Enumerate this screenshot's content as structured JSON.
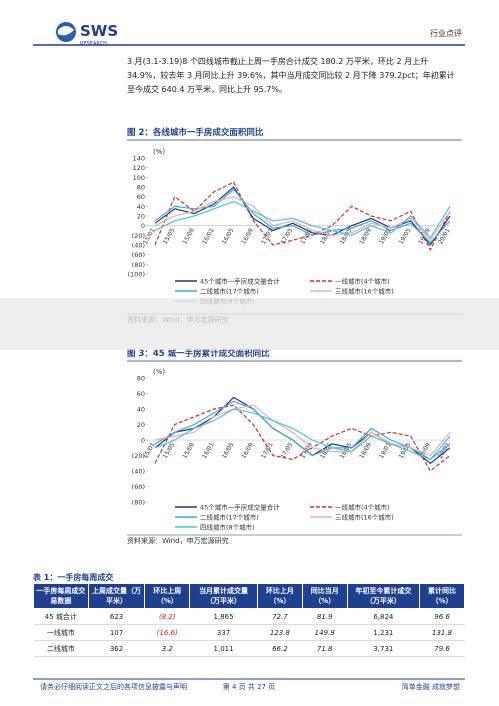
{
  "header": {
    "logo": "SWS",
    "logo_sub": "RESEARCH",
    "section": "行业点评"
  },
  "paragraph": {
    "lines": [
      "3 月(3.1-3.19)8 个四线城市截止上周一手房合计成交 180.2 万平米，环比 2 月上升",
      "34.9%，较去年 3 月同比上升 39.6%，其中当月成交同比较 2 月下降 379.2pct；年初累计",
      "至今成交 640.4 万平米，同比上升 95.7%。"
    ]
  },
  "chart_data": [
    {
      "type": "line",
      "title": "图 2：各线城市一手房成交面积同比",
      "unit": "(%)",
      "categories": [
        "15/01",
        "15/05",
        "15/09",
        "16/01",
        "16/05",
        "16/09",
        "17/01",
        "17/05",
        "17/09",
        "18/01",
        "18/05",
        "18/09",
        "19/01",
        "19/05",
        "19/09",
        "20/01"
      ],
      "ylim": [
        -100,
        140
      ],
      "yticks": [
        140,
        120,
        100,
        80,
        60,
        40,
        20,
        0,
        {
          "value": -20,
          "label": "(20)"
        },
        {
          "value": -40,
          "label": "(40)"
        },
        {
          "value": -60,
          "label": "(60)"
        },
        {
          "value": -80,
          "label": "(80)"
        },
        {
          "value": -100,
          "label": "(100)"
        }
      ],
      "series": [
        {
          "name": "45个城市一手房成交量合计",
          "color": "#1f3a7a",
          "style": "solid",
          "values": [
            5,
            35,
            25,
            45,
            80,
            15,
            -10,
            5,
            -15,
            -20,
            0,
            15,
            -5,
            10,
            -40,
            20
          ]
        },
        {
          "name": "一线城市(4个城市)",
          "color": "#d03030",
          "style": "dashed",
          "values": [
            -40,
            60,
            30,
            70,
            90,
            10,
            -40,
            -30,
            -20,
            0,
            40,
            20,
            10,
            30,
            -50,
            30
          ]
        },
        {
          "name": "二线城市(17个城市)",
          "color": "#3fa9dc",
          "style": "solid",
          "values": [
            10,
            40,
            35,
            40,
            75,
            25,
            -5,
            0,
            -20,
            -10,
            -5,
            10,
            -10,
            5,
            -35,
            10
          ]
        },
        {
          "name": "三线城市(16个城市)",
          "color": "#e9b0b0",
          "style": "solid",
          "values": [
            0,
            20,
            30,
            50,
            60,
            40,
            0,
            10,
            -10,
            -20,
            -15,
            5,
            -5,
            15,
            -30,
            30
          ]
        },
        {
          "name": "四线城市(8个城市)",
          "color": "#4dc3e0",
          "style": "solid",
          "values": [
            -10,
            10,
            20,
            35,
            50,
            30,
            10,
            15,
            0,
            -10,
            -20,
            0,
            -15,
            20,
            -25,
            40
          ]
        }
      ],
      "source": "资料来源：Wind，申万宏源研究"
    },
    {
      "type": "line",
      "title": "图 3：45 城一手房累计成交面积同比",
      "unit": "(%)",
      "categories": [
        "15/01",
        "15/05",
        "15/09",
        "16/01",
        "16/05",
        "16/09",
        "17/01",
        "17/05",
        "17/09",
        "18/01",
        "18/05",
        "18/09",
        "19/01",
        "19/05",
        "19/09",
        "20/01"
      ],
      "ylim": [
        -80,
        80
      ],
      "yticks": [
        80,
        60,
        40,
        20,
        0,
        {
          "value": -20,
          "label": "(20)"
        },
        {
          "value": -40,
          "label": "(40)"
        },
        {
          "value": -60,
          "label": "(60)"
        },
        {
          "value": -80,
          "label": "(80)"
        }
      ],
      "series": [
        {
          "name": "45个城市一手房成交量合计",
          "color": "#1f3a7a",
          "style": "solid",
          "values": [
            -10,
            10,
            15,
            30,
            55,
            40,
            15,
            0,
            -20,
            -5,
            -10,
            10,
            -5,
            -10,
            -30,
            -10
          ]
        },
        {
          "name": "一线城市(4个城市)",
          "color": "#d03030",
          "style": "dashed",
          "values": [
            -30,
            20,
            30,
            40,
            45,
            20,
            -20,
            -25,
            -10,
            5,
            15,
            5,
            10,
            5,
            -40,
            -20
          ]
        },
        {
          "name": "二线城市(17个城市)",
          "color": "#3fa9dc",
          "style": "solid",
          "values": [
            -5,
            10,
            20,
            35,
            50,
            40,
            15,
            0,
            -20,
            -10,
            -10,
            15,
            0,
            -10,
            -25,
            -5
          ]
        },
        {
          "name": "三线城市(16个城市)",
          "color": "#e9b0b0",
          "style": "solid",
          "values": [
            0,
            5,
            10,
            30,
            40,
            45,
            25,
            10,
            -10,
            -15,
            -15,
            10,
            -5,
            -10,
            -20,
            10
          ]
        },
        {
          "name": "四线城市(8个城市)",
          "color": "#4dc3e0",
          "style": "solid",
          "values": [
            -10,
            0,
            15,
            25,
            40,
            35,
            25,
            15,
            0,
            -10,
            -15,
            5,
            -5,
            -15,
            -25,
            5
          ]
        }
      ],
      "source": "资料来源：Wind，申万宏源研究"
    }
  ],
  "table": {
    "title": "表 1：一手房每周成交",
    "header": [
      "一手房每周成交易数据",
      "上周成交量（万平米）",
      "环比上周（%）",
      "当月累计成交量（万平米）",
      "环比上月（%）",
      "同比当月（%）",
      "年初至今累计成交（万平米）",
      "累计同比（%）"
    ],
    "rows": [
      [
        "45 城合计",
        "623",
        "(8.2)",
        "1,865",
        "72.7",
        "81.9",
        "6,824",
        "96.6"
      ],
      [
        "一线城市",
        "107",
        "(16.6)",
        "337",
        "123.8",
        "149.9",
        "1,231",
        "131.8"
      ],
      [
        "二线城市",
        "362",
        "3.2",
        "1,011",
        "66.2",
        "71.8",
        "3,731",
        "79.6"
      ]
    ]
  },
  "footer": {
    "disclaimer": "请务必仔细阅读正文之后的各项信息披露与声明",
    "page": "第 4 页 共 27 页",
    "slogan": "简单金融 成就梦想"
  }
}
